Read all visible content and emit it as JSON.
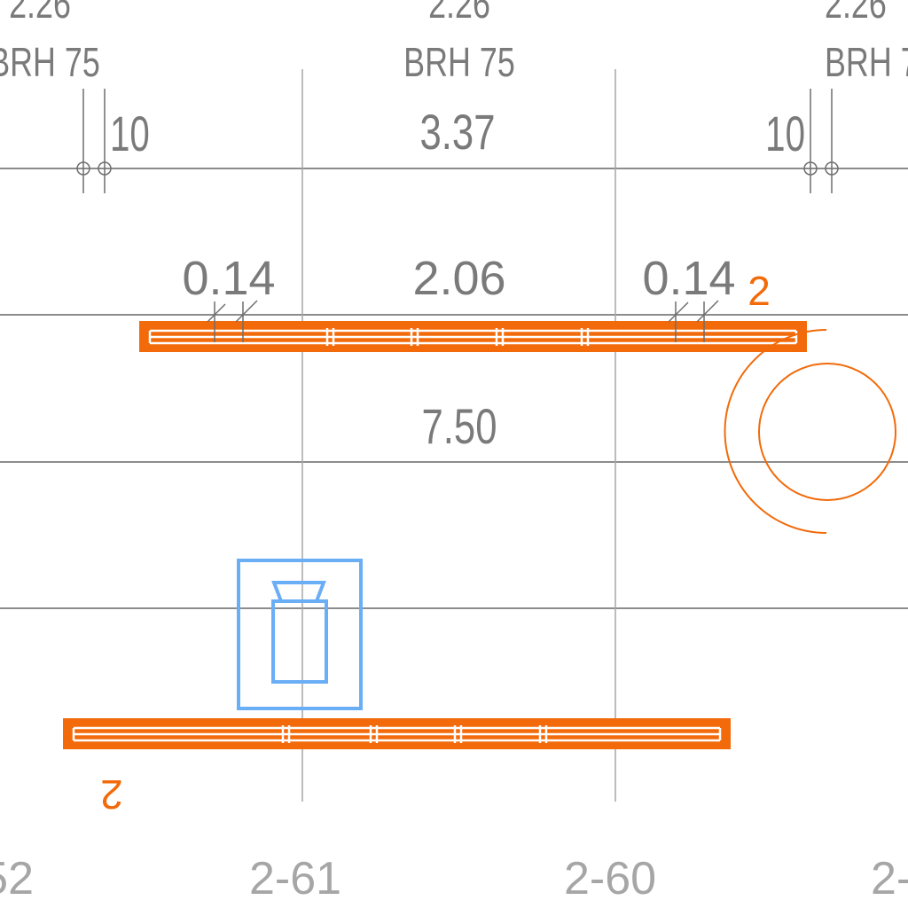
{
  "colors": {
    "background": "#ffffff",
    "grid_lines": "#8c8c8c",
    "annotation_text": "#7a7a7a",
    "axis_labels": "#a6a6a6",
    "shelving": "#f26a0a",
    "appliance_symbol": "#6aaef6"
  },
  "top_annotations": {
    "left": {
      "value": "2.26",
      "code": "BRH 75"
    },
    "center": {
      "value": "2.26",
      "code": "BRH 75"
    },
    "right": {
      "value": "2.26",
      "code": "BRH 7"
    }
  },
  "dimensions": {
    "offset_left": "10",
    "span_upper": "3.37",
    "offset_right": "10",
    "gap_left": "0.14",
    "span_middle": "2.06",
    "gap_right": "0.14",
    "span_lower": "7.50"
  },
  "rack_labels": {
    "upper": "2",
    "lower": "2"
  },
  "grid_axes": {
    "left": "52",
    "center_left": "2-61",
    "center_right": "2-60",
    "right": "2-"
  },
  "icons": {
    "door_swing": "door-swing-icon",
    "appliance": "bottle-cabinet-icon"
  }
}
